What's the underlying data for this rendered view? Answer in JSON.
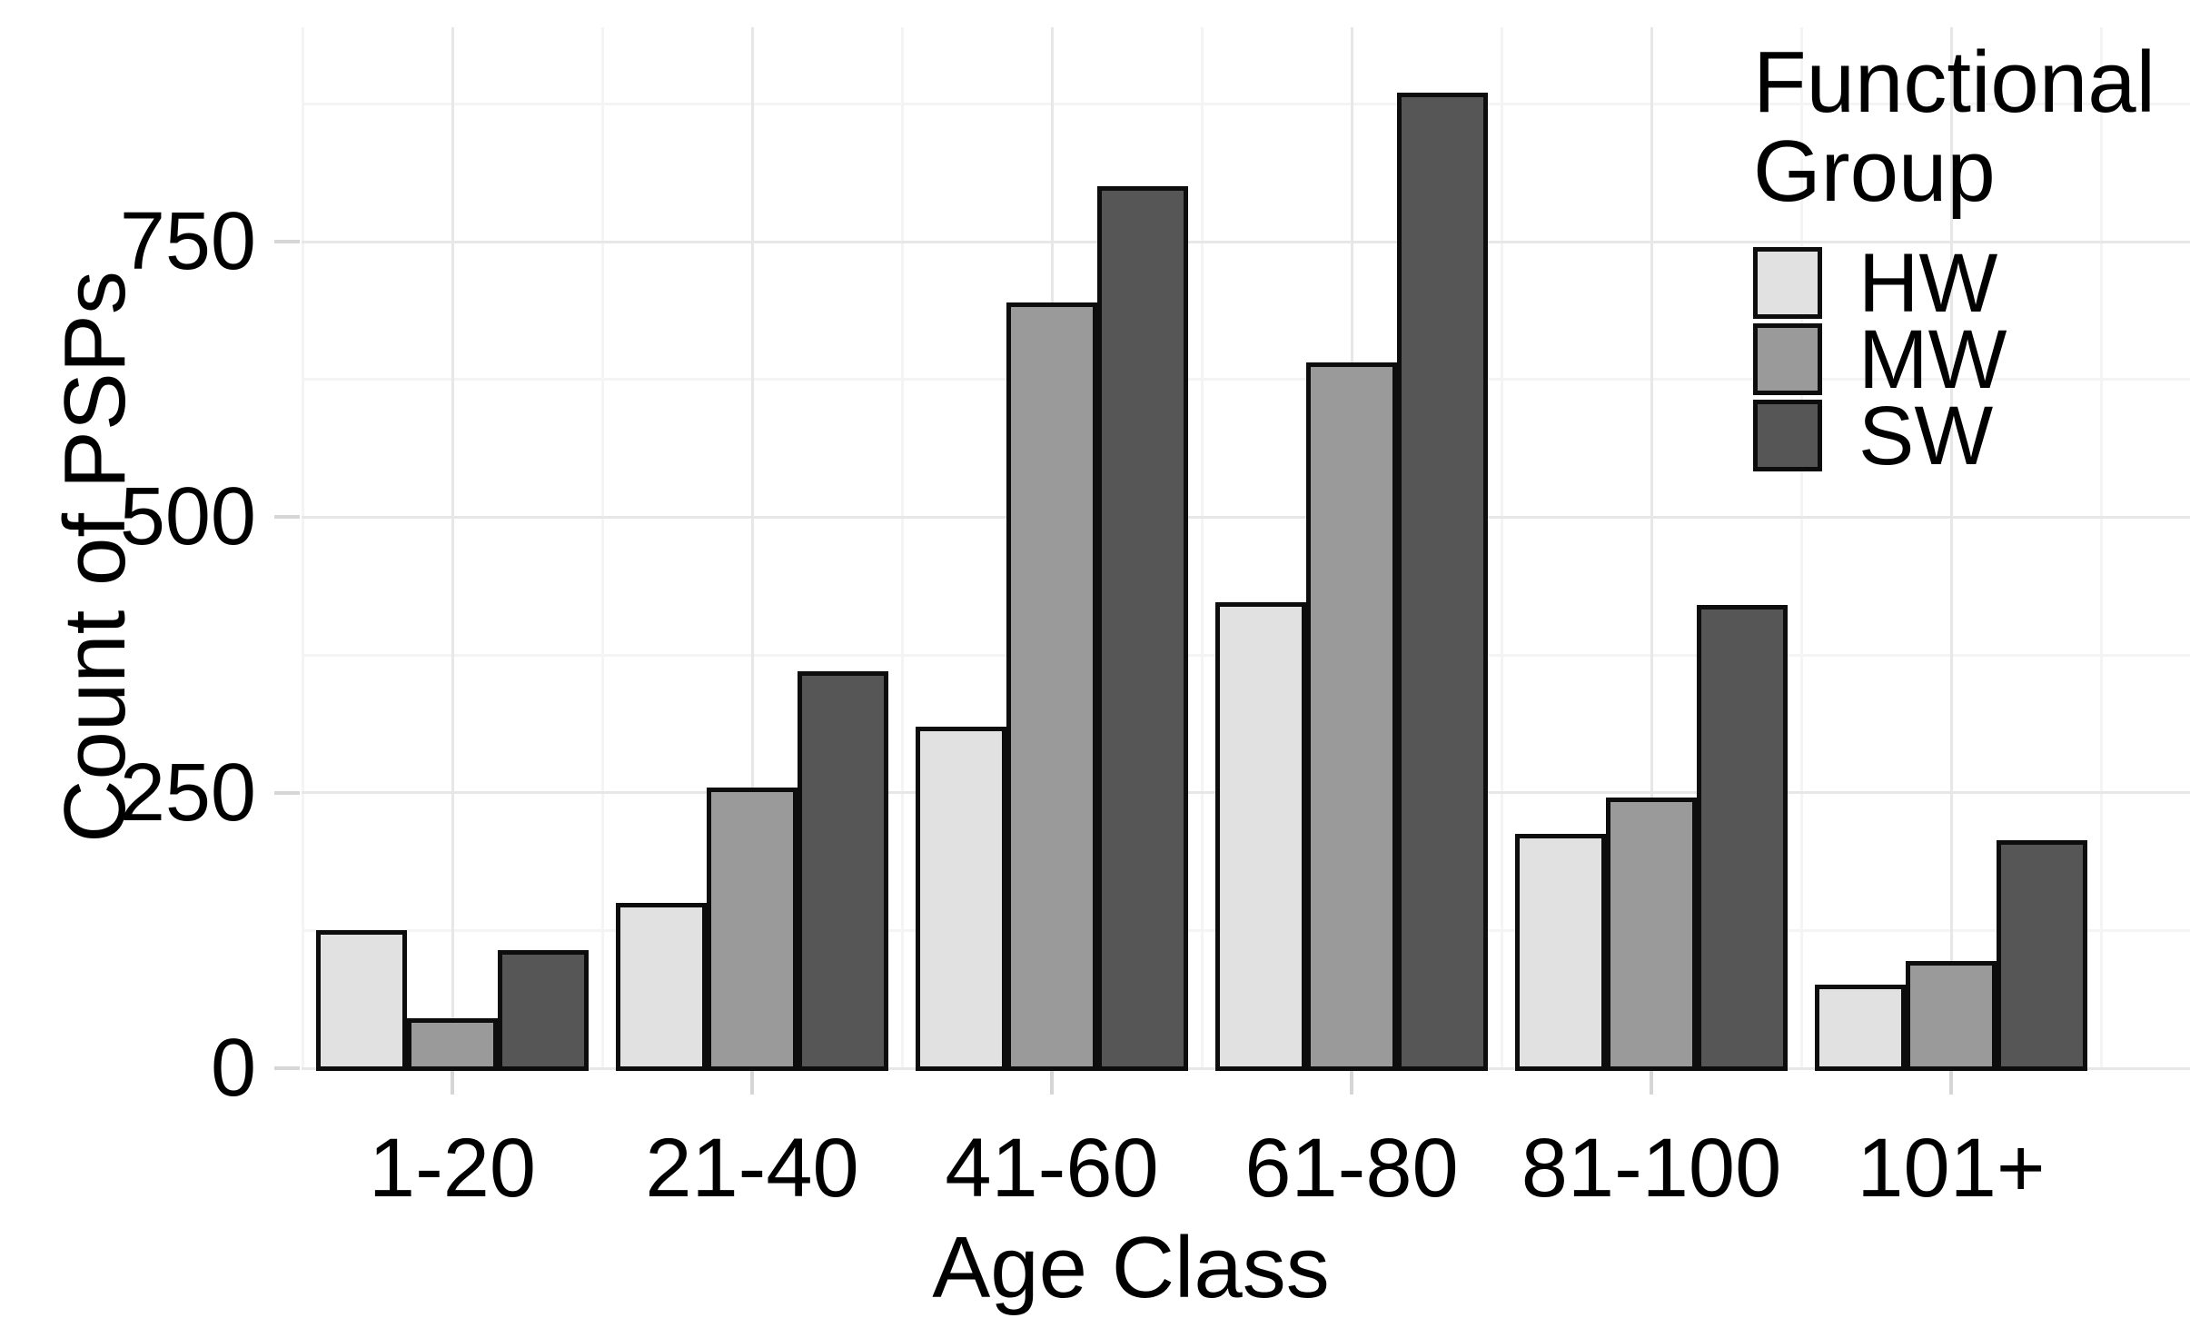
{
  "chart_data": {
    "type": "bar",
    "title": "",
    "categories": [
      "1-20",
      "21-40",
      "41-60",
      "61-80",
      "81-100",
      "101+"
    ],
    "series": [
      {
        "name": "HW",
        "color": "#e1e1e1",
        "values": [
          125,
          150,
          310,
          423,
          213,
          76
        ]
      },
      {
        "name": "MW",
        "color": "#9a9a9a",
        "values": [
          45,
          255,
          695,
          640,
          246,
          97
        ]
      },
      {
        "name": "SW",
        "color": "#565656",
        "values": [
          107,
          360,
          800,
          885,
          420,
          207
        ]
      }
    ],
    "xlabel": "Age Class",
    "ylabel": "Count of PSPs",
    "y_ticks": [
      0,
      250,
      500,
      750
    ],
    "y_minor_gridlines": [
      125,
      375,
      625,
      875
    ],
    "ylim": [
      0,
      970
    ],
    "grid": "on",
    "bar_border_color": "#0d0d0d",
    "axis_text_color": "#000000",
    "legend": {
      "title": "Functional Group",
      "title_lines": [
        "Functional",
        "Group"
      ],
      "position": "inside-top-right",
      "entries": [
        "HW",
        "MW",
        "SW"
      ]
    }
  }
}
